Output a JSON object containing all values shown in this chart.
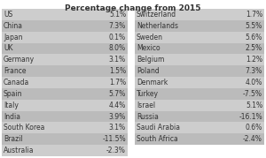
{
  "title": "Percentage change from 2015",
  "left_col": [
    [
      "US",
      "5.1%"
    ],
    [
      "China",
      "7.3%"
    ],
    [
      "Japan",
      "0.1%"
    ],
    [
      "UK",
      "8.0%"
    ],
    [
      "Germany",
      "3.1%"
    ],
    [
      "France",
      "1.5%"
    ],
    [
      "Canada",
      "1.7%"
    ],
    [
      "Spain",
      "5.7%"
    ],
    [
      "Italy",
      "4.4%"
    ],
    [
      "India",
      "3.9%"
    ],
    [
      "South Korea",
      "3.1%"
    ],
    [
      "Brazil",
      "-11.5%"
    ],
    [
      "Australia",
      "-2.3%"
    ]
  ],
  "right_col": [
    [
      "Switzerland",
      "1.7%"
    ],
    [
      "Netherlands",
      "5.5%"
    ],
    [
      "Sweden",
      "5.6%"
    ],
    [
      "Mexico",
      "2.5%"
    ],
    [
      "Belgium",
      "1.2%"
    ],
    [
      "Poland",
      "7.3%"
    ],
    [
      "Denmark",
      "4.0%"
    ],
    [
      "Turkey",
      "-7.5%"
    ],
    [
      "Israel",
      "5.1%"
    ],
    [
      "Russia",
      "-16.1%"
    ],
    [
      "Saudi Arabia",
      "0.6%"
    ],
    [
      "South Africa",
      "-2.4%"
    ]
  ],
  "bg_color_light": "#cdcdcd",
  "bg_color_dark": "#bbbbbb",
  "fig_bg": "#ffffff",
  "title_fontsize": 6.5,
  "cell_fontsize": 5.5,
  "text_color": "#333333"
}
